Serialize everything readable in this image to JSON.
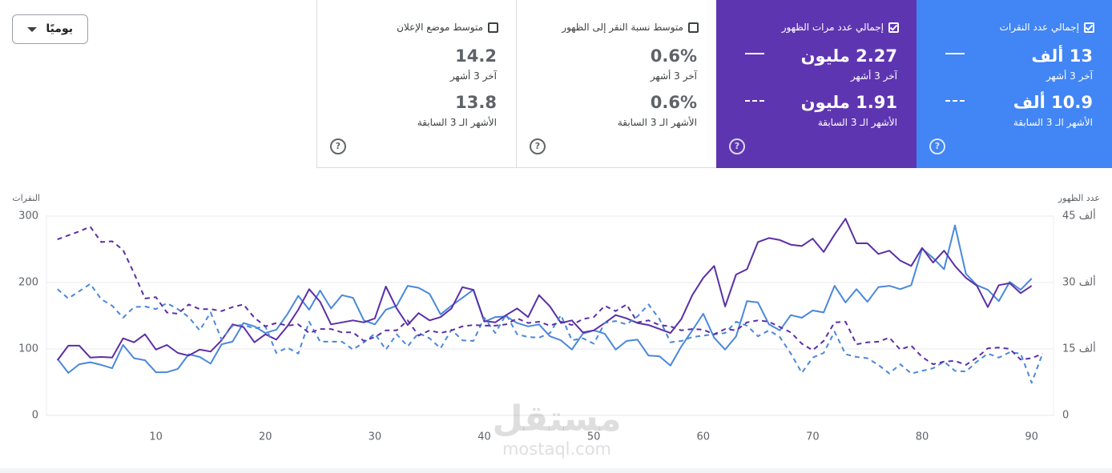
{
  "dropdown": {
    "label": "يوميًا"
  },
  "cards": [
    {
      "title": "إجمالي عدد النقرات",
      "checked": true,
      "color": "#4285f4",
      "value": "13 ألف",
      "period": "آخر 3 أشهر",
      "prev_value": "10.9 ألف",
      "prev_period": "الأشهر الـ 3 السابقة"
    },
    {
      "title": "إجمالي عدد مرات الظهور",
      "checked": true,
      "color": "#5e35b1",
      "value": "2.27 مليون",
      "period": "آخر 3 أشهر",
      "prev_value": "1.91 مليون",
      "prev_period": "الأشهر الـ 3 السابقة"
    },
    {
      "title": "متوسط نسبة النقر إلى الظهور",
      "checked": false,
      "color": "#ffffff",
      "value": "0.6%",
      "period": "آخر 3 أشهر",
      "prev_value": "0.6%",
      "prev_period": "الأشهر الـ 3 السابقة"
    },
    {
      "title": "متوسط موضع الإعلان",
      "checked": false,
      "color": "#ffffff",
      "value": "14.2",
      "period": "آخر 3 أشهر",
      "prev_value": "13.8",
      "prev_period": "الأشهر الـ 3 السابقة"
    }
  ],
  "watermark": {
    "logo": "مستقل",
    "site": "mostaql.com"
  },
  "chart_data": {
    "type": "line",
    "y_label": "النقرات",
    "y2_label": "عدد الظهور",
    "grid": true,
    "x": [
      1,
      2,
      3,
      4,
      5,
      6,
      7,
      8,
      9,
      10,
      11,
      12,
      13,
      14,
      15,
      16,
      17,
      18,
      19,
      20,
      21,
      22,
      23,
      24,
      25,
      26,
      27,
      28,
      29,
      30,
      31,
      32,
      33,
      34,
      35,
      36,
      37,
      38,
      39,
      40,
      41,
      42,
      43,
      44,
      45,
      46,
      47,
      48,
      49,
      50,
      51,
      52,
      53,
      54,
      55,
      56,
      57,
      58,
      59,
      60,
      61,
      62,
      63,
      64,
      65,
      66,
      67,
      68,
      69,
      70,
      71,
      72,
      73,
      74,
      75,
      76,
      77,
      78,
      79,
      80,
      81,
      82,
      83,
      84,
      85,
      86,
      87,
      88,
      89,
      90,
      91
    ],
    "xlim": [
      0,
      92
    ],
    "xticks": [
      10,
      20,
      30,
      40,
      50,
      60,
      70,
      80,
      90
    ],
    "ylim": [
      0,
      300
    ],
    "yticks": [
      0,
      100,
      200,
      300
    ],
    "y2lim": [
      0,
      45000
    ],
    "y2ticks": [
      0,
      {
        "value": 15000,
        "label": "15 ألف"
      },
      {
        "value": 30000,
        "label": "30 ألف"
      },
      {
        "value": 45000,
        "label": "45 ألف"
      }
    ],
    "series": [
      {
        "color": "#4a88da",
        "dashed": false,
        "values": [
          85,
          64,
          77,
          80,
          76,
          71,
          106,
          86,
          83,
          65,
          65,
          70,
          92,
          88,
          78,
          107,
          111,
          139,
          134,
          124,
          129,
          152,
          180,
          159,
          188,
          161,
          181,
          177,
          143,
          137,
          159,
          165,
          195,
          192,
          183,
          152,
          165,
          177,
          189,
          141,
          148,
          149,
          139,
          134,
          137,
          119,
          113,
          99,
          123,
          128,
          123,
          99,
          112,
          114,
          90,
          89,
          75,
          104,
          128,
          153,
          117,
          99,
          119,
          172,
          170,
          137,
          128,
          151,
          147,
          158,
          155,
          195,
          170,
          190,
          171,
          193,
          195,
          190,
          196,
          251,
          237,
          220,
          286,
          213,
          196,
          189,
          172,
          201,
          189,
          206,
          null
        ]
      },
      {
        "color": "#5b2fa6",
        "dashed": false,
        "axis": "y2",
        "values": [
          12450,
          15750,
          15750,
          13050,
          13200,
          13050,
          17400,
          16500,
          18300,
          14850,
          15900,
          14100,
          13500,
          14850,
          14400,
          16950,
          20550,
          19950,
          16500,
          18300,
          17100,
          20100,
          23850,
          28500,
          25650,
          20550,
          21000,
          21450,
          21000,
          21900,
          29100,
          24150,
          20400,
          23100,
          21450,
          22200,
          24150,
          28950,
          28350,
          21300,
          21000,
          22650,
          24150,
          22200,
          27150,
          24600,
          20850,
          21450,
          18750,
          19200,
          20850,
          22650,
          21900,
          20850,
          20400,
          19500,
          18600,
          21750,
          27150,
          31050,
          33750,
          24600,
          31800,
          33000,
          39150,
          40050,
          39600,
          38550,
          38250,
          39900,
          36900,
          40800,
          44400,
          38850,
          38850,
          36450,
          37200,
          34950,
          33750,
          37800,
          34500,
          37200,
          33750,
          31050,
          29250,
          24450,
          29400,
          29850,
          27600,
          29250,
          null
        ]
      },
      {
        "color": "#4a88da",
        "dashed": true,
        "values": [
          190,
          176,
          187,
          198,
          175,
          165,
          147,
          163,
          164,
          160,
          169,
          160,
          148,
          128,
          155,
          114,
          135,
          136,
          131,
          134,
          94,
          102,
          93,
          141,
          111,
          111,
          111,
          99,
          110,
          123,
          99,
          122,
          104,
          124,
          116,
          101,
          129,
          113,
          112,
          147,
          124,
          152,
          122,
          118,
          117,
          124,
          151,
          113,
          116,
          108,
          139,
          142,
          137,
          149,
          167,
          145,
          110,
          112,
          118,
          120,
          122,
          124,
          141,
          135,
          119,
          128,
          118,
          93,
          64,
          87,
          94,
          126,
          92,
          88,
          86,
          76,
          63,
          77,
          63,
          67,
          71,
          81,
          67,
          66,
          81,
          93,
          87,
          95,
          93,
          49,
          93
        ]
      },
      {
        "color": "#5b2fa6",
        "dashed": true,
        "axis": "y2",
        "values": [
          39750,
          40650,
          41550,
          42600,
          39150,
          39300,
          37350,
          32100,
          26400,
          26700,
          23250,
          22950,
          25050,
          24000,
          24000,
          23550,
          24450,
          25050,
          22050,
          20100,
          20850,
          20250,
          20550,
          18600,
          19500,
          19500,
          18750,
          18750,
          16800,
          17700,
          19200,
          19200,
          21450,
          18000,
          19200,
          18600,
          19200,
          20100,
          20400,
          20250,
          20250,
          20550,
          21900,
          20850,
          21150,
          20250,
          21150,
          20400,
          21750,
          22200,
          24750,
          23550,
          25050,
          21000,
          21450,
          20400,
          20100,
          19200,
          19500,
          19350,
          18300,
          19500,
          19200,
          21000,
          21450,
          21150,
          19950,
          18750,
          16200,
          14700,
          16800,
          21000,
          21150,
          16050,
          16500,
          16650,
          17550,
          14850,
          15750,
          13200,
          11550,
          12150,
          12300,
          11400,
          13050,
          15150,
          15300,
          15000,
          12600,
          12900,
          13950
        ]
      }
    ]
  }
}
